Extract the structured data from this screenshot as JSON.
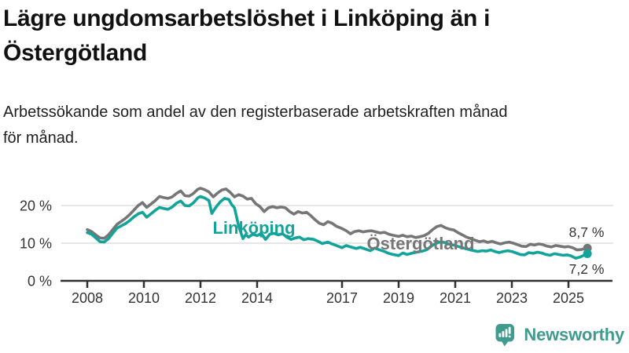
{
  "header": {
    "title_line1": "Lägre ungdomsarbetslöshet i Linköping än i",
    "title_line2": "Östergötland",
    "subtitle_line1": "Arbetssökande som andel av den registerbaserade arbetskraften månad",
    "subtitle_line2": "för månad."
  },
  "colors": {
    "title_text": "#111111",
    "axis_text": "#333333",
    "axis_line": "#2f2f2f",
    "grid_line": "#dddddd",
    "linkoping": "#12a49a",
    "ostergotland": "#767676",
    "brand": "#3f9b8e"
  },
  "footer": {
    "brand_name": "Newsworthy",
    "logo_icon": "speech-bubble-bar-chart-exclamation"
  },
  "chart_data": {
    "type": "line",
    "title": "Lägre ungdomsarbetslöshet i Linköping än i Östergötland",
    "xlabel": "",
    "ylabel": "Arbetssökande som andel av den registerbaserade arbetskraften (%)",
    "grid": "horizontal",
    "legend_position": "inline-labels",
    "xlim": [
      2007.6,
      2026.3
    ],
    "ylim": [
      0,
      27
    ],
    "x_tick_labels": [
      "2008",
      "2010",
      "2012",
      "2014",
      "2017",
      "2019",
      "2021",
      "2023",
      "2025"
    ],
    "x_tick_years": [
      2008,
      2010,
      2012,
      2014,
      2017,
      2019,
      2021,
      2023,
      2025
    ],
    "y_tick_labels": [
      "0 %",
      "10 %",
      "20 %"
    ],
    "y_tick_values": [
      0,
      10,
      20
    ],
    "series": [
      {
        "name": "Östergötland",
        "color": "#767676",
        "end_label": "8,7 %",
        "end_value": 8.7,
        "points": [
          [
            2008.0,
            13.6
          ],
          [
            2008.15,
            13.1
          ],
          [
            2008.3,
            12.2
          ],
          [
            2008.45,
            11.4
          ],
          [
            2008.6,
            11.3
          ],
          [
            2008.75,
            12.2
          ],
          [
            2008.9,
            13.6
          ],
          [
            2009.05,
            15.0
          ],
          [
            2009.2,
            15.8
          ],
          [
            2009.35,
            16.6
          ],
          [
            2009.5,
            17.6
          ],
          [
            2009.65,
            18.8
          ],
          [
            2009.8,
            20.0
          ],
          [
            2009.95,
            20.8
          ],
          [
            2010.1,
            19.5
          ],
          [
            2010.25,
            20.4
          ],
          [
            2010.4,
            21.3
          ],
          [
            2010.55,
            22.4
          ],
          [
            2010.7,
            22.1
          ],
          [
            2010.85,
            21.9
          ],
          [
            2011.0,
            22.3
          ],
          [
            2011.15,
            23.2
          ],
          [
            2011.3,
            23.9
          ],
          [
            2011.45,
            22.6
          ],
          [
            2011.6,
            22.5
          ],
          [
            2011.75,
            23.2
          ],
          [
            2011.9,
            24.3
          ],
          [
            2012.0,
            24.6
          ],
          [
            2012.15,
            24.2
          ],
          [
            2012.3,
            23.6
          ],
          [
            2012.45,
            22.3
          ],
          [
            2012.6,
            23.3
          ],
          [
            2012.75,
            24.1
          ],
          [
            2012.9,
            24.4
          ],
          [
            2013.05,
            23.5
          ],
          [
            2013.2,
            22.3
          ],
          [
            2013.35,
            22.9
          ],
          [
            2013.5,
            22.5
          ],
          [
            2013.65,
            21.7
          ],
          [
            2013.8,
            21.9
          ],
          [
            2013.95,
            20.5
          ],
          [
            2014.1,
            19.7
          ],
          [
            2014.25,
            18.4
          ],
          [
            2014.4,
            19.4
          ],
          [
            2014.55,
            19.7
          ],
          [
            2014.7,
            19.4
          ],
          [
            2014.85,
            19.6
          ],
          [
            2015.0,
            19.4
          ],
          [
            2015.15,
            18.4
          ],
          [
            2015.3,
            17.7
          ],
          [
            2015.45,
            18.4
          ],
          [
            2015.6,
            18.0
          ],
          [
            2015.75,
            18.2
          ],
          [
            2015.9,
            17.3
          ],
          [
            2016.05,
            16.2
          ],
          [
            2016.2,
            15.3
          ],
          [
            2016.35,
            14.9
          ],
          [
            2016.5,
            15.7
          ],
          [
            2016.65,
            15.3
          ],
          [
            2016.8,
            14.5
          ],
          [
            2017.0,
            13.9
          ],
          [
            2017.15,
            13.3
          ],
          [
            2017.3,
            12.5
          ],
          [
            2017.45,
            13.1
          ],
          [
            2017.6,
            13.3
          ],
          [
            2017.75,
            13.0
          ],
          [
            2017.9,
            13.2
          ],
          [
            2018.05,
            13.3
          ],
          [
            2018.2,
            13.0
          ],
          [
            2018.35,
            12.7
          ],
          [
            2018.5,
            12.9
          ],
          [
            2018.65,
            12.4
          ],
          [
            2018.8,
            12.1
          ],
          [
            2019.0,
            11.8
          ],
          [
            2019.15,
            12.1
          ],
          [
            2019.3,
            11.7
          ],
          [
            2019.45,
            11.9
          ],
          [
            2019.6,
            11.5
          ],
          [
            2019.75,
            11.7
          ],
          [
            2019.9,
            12.0
          ],
          [
            2020.05,
            12.6
          ],
          [
            2020.2,
            13.6
          ],
          [
            2020.35,
            14.4
          ],
          [
            2020.5,
            14.7
          ],
          [
            2020.65,
            14.1
          ],
          [
            2020.8,
            13.7
          ],
          [
            2020.95,
            13.5
          ],
          [
            2021.1,
            12.8
          ],
          [
            2021.25,
            12.2
          ],
          [
            2021.4,
            11.6
          ],
          [
            2021.55,
            11.2
          ],
          [
            2021.7,
            10.8
          ],
          [
            2021.85,
            10.4
          ],
          [
            2022.0,
            10.6
          ],
          [
            2022.15,
            10.2
          ],
          [
            2022.3,
            10.5
          ],
          [
            2022.45,
            10.1
          ],
          [
            2022.6,
            9.8
          ],
          [
            2022.75,
            10.1
          ],
          [
            2022.9,
            10.3
          ],
          [
            2023.05,
            10.0
          ],
          [
            2023.2,
            9.6
          ],
          [
            2023.35,
            9.2
          ],
          [
            2023.5,
            9.1
          ],
          [
            2023.65,
            9.7
          ],
          [
            2023.8,
            9.5
          ],
          [
            2023.95,
            9.8
          ],
          [
            2024.1,
            9.6
          ],
          [
            2024.25,
            9.2
          ],
          [
            2024.4,
            9.0
          ],
          [
            2024.55,
            9.4
          ],
          [
            2024.7,
            9.2
          ],
          [
            2024.85,
            9.0
          ],
          [
            2025.0,
            9.1
          ],
          [
            2025.15,
            8.8
          ],
          [
            2025.3,
            8.2
          ],
          [
            2025.45,
            8.3
          ],
          [
            2025.55,
            8.5
          ],
          [
            2025.67,
            8.7
          ]
        ]
      },
      {
        "name": "Linköping",
        "color": "#12a49a",
        "end_label": "7,2 %",
        "end_value": 7.2,
        "points": [
          [
            2008.0,
            12.8
          ],
          [
            2008.15,
            12.4
          ],
          [
            2008.3,
            11.4
          ],
          [
            2008.45,
            10.4
          ],
          [
            2008.6,
            10.3
          ],
          [
            2008.75,
            11.2
          ],
          [
            2008.9,
            12.6
          ],
          [
            2009.05,
            14.0
          ],
          [
            2009.2,
            14.6
          ],
          [
            2009.35,
            15.2
          ],
          [
            2009.5,
            16.0
          ],
          [
            2009.65,
            17.0
          ],
          [
            2009.8,
            17.8
          ],
          [
            2009.95,
            18.2
          ],
          [
            2010.1,
            16.9
          ],
          [
            2010.25,
            17.8
          ],
          [
            2010.4,
            18.7
          ],
          [
            2010.55,
            19.5
          ],
          [
            2010.7,
            19.2
          ],
          [
            2010.85,
            19.0
          ],
          [
            2011.0,
            19.6
          ],
          [
            2011.15,
            20.6
          ],
          [
            2011.3,
            21.2
          ],
          [
            2011.45,
            20.0
          ],
          [
            2011.6,
            19.9
          ],
          [
            2011.75,
            20.7
          ],
          [
            2011.9,
            22.0
          ],
          [
            2012.0,
            22.4
          ],
          [
            2012.15,
            22.0
          ],
          [
            2012.3,
            21.3
          ],
          [
            2012.4,
            17.9
          ],
          [
            2012.55,
            19.6
          ],
          [
            2012.7,
            21.0
          ],
          [
            2012.85,
            21.9
          ],
          [
            2013.0,
            21.6
          ],
          [
            2013.1,
            20.3
          ],
          [
            2013.2,
            19.4
          ],
          [
            2013.35,
            14.5
          ],
          [
            2013.5,
            11.2
          ],
          [
            2013.6,
            12.3
          ],
          [
            2013.7,
            11.6
          ],
          [
            2013.85,
            12.4
          ],
          [
            2014.0,
            12.0
          ],
          [
            2014.15,
            12.6
          ],
          [
            2014.3,
            11.0
          ],
          [
            2014.45,
            12.4
          ],
          [
            2014.6,
            12.6
          ],
          [
            2014.75,
            12.2
          ],
          [
            2014.9,
            12.5
          ],
          [
            2015.05,
            11.6
          ],
          [
            2015.2,
            11.0
          ],
          [
            2015.35,
            11.4
          ],
          [
            2015.5,
            11.6
          ],
          [
            2015.65,
            10.9
          ],
          [
            2015.8,
            11.2
          ],
          [
            2016.0,
            11.0
          ],
          [
            2016.15,
            10.5
          ],
          [
            2016.3,
            9.9
          ],
          [
            2016.5,
            10.3
          ],
          [
            2016.65,
            9.8
          ],
          [
            2016.8,
            9.4
          ],
          [
            2017.0,
            8.8
          ],
          [
            2017.15,
            9.4
          ],
          [
            2017.3,
            9.0
          ],
          [
            2017.5,
            8.6
          ],
          [
            2017.65,
            8.9
          ],
          [
            2017.8,
            8.5
          ],
          [
            2018.0,
            8.0
          ],
          [
            2018.15,
            8.7
          ],
          [
            2018.3,
            8.3
          ],
          [
            2018.5,
            7.8
          ],
          [
            2018.65,
            7.3
          ],
          [
            2018.8,
            7.0
          ],
          [
            2019.0,
            6.7
          ],
          [
            2019.15,
            7.4
          ],
          [
            2019.3,
            7.0
          ],
          [
            2019.5,
            7.4
          ],
          [
            2019.7,
            7.7
          ],
          [
            2019.85,
            7.9
          ],
          [
            2020.0,
            8.3
          ],
          [
            2020.15,
            9.2
          ],
          [
            2020.3,
            9.9
          ],
          [
            2020.5,
            10.4
          ],
          [
            2020.65,
            10.1
          ],
          [
            2020.8,
            9.7
          ],
          [
            2021.0,
            9.4
          ],
          [
            2021.2,
            8.9
          ],
          [
            2021.4,
            8.5
          ],
          [
            2021.6,
            8.1
          ],
          [
            2021.8,
            7.8
          ],
          [
            2021.95,
            8.0
          ],
          [
            2022.1,
            7.9
          ],
          [
            2022.25,
            8.2
          ],
          [
            2022.4,
            7.8
          ],
          [
            2022.55,
            7.5
          ],
          [
            2022.7,
            7.8
          ],
          [
            2022.85,
            8.0
          ],
          [
            2023.0,
            7.8
          ],
          [
            2023.15,
            7.4
          ],
          [
            2023.3,
            7.0
          ],
          [
            2023.45,
            6.9
          ],
          [
            2023.6,
            7.5
          ],
          [
            2023.75,
            7.3
          ],
          [
            2023.9,
            7.6
          ],
          [
            2024.05,
            7.4
          ],
          [
            2024.2,
            7.0
          ],
          [
            2024.35,
            6.8
          ],
          [
            2024.5,
            7.2
          ],
          [
            2024.65,
            7.0
          ],
          [
            2024.8,
            6.8
          ],
          [
            2024.95,
            6.9
          ],
          [
            2025.1,
            6.6
          ],
          [
            2025.25,
            6.0
          ],
          [
            2025.4,
            6.3
          ],
          [
            2025.55,
            6.8
          ],
          [
            2025.67,
            7.2
          ]
        ]
      }
    ]
  }
}
